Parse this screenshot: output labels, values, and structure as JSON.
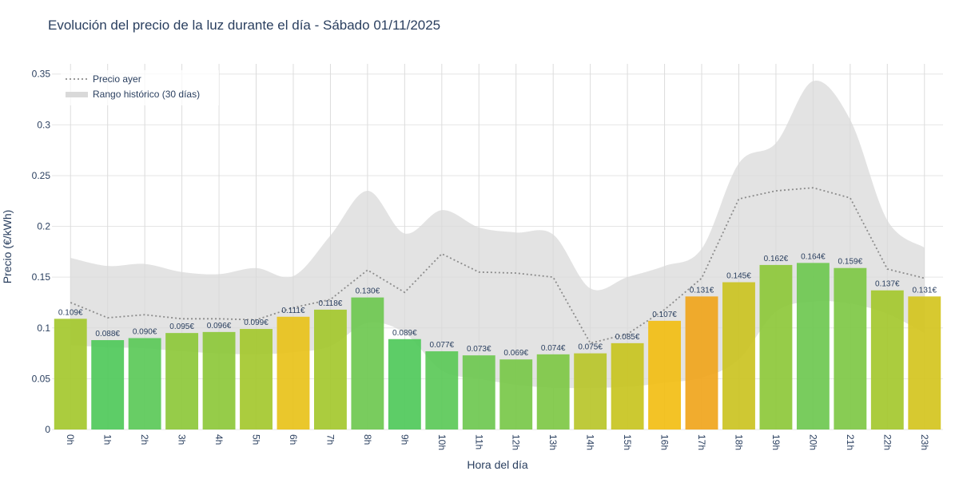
{
  "chart_data": {
    "type": "bar",
    "title": "Evolución del precio de la luz durante el día - Sábado 01/11/2025",
    "xlabel": "Hora del día",
    "ylabel": "Precio (€/kWh)",
    "ylim": [
      0,
      0.36
    ],
    "yticks": [
      0,
      0.05,
      0.1,
      0.15,
      0.2,
      0.25,
      0.3,
      0.35
    ],
    "ytick_labels": [
      "0",
      "0.05",
      "0.1",
      "0.15",
      "0.2",
      "0.25",
      "0.3",
      "0.35"
    ],
    "categories": [
      "0h",
      "1h",
      "2h",
      "3h",
      "4h",
      "5h",
      "6h",
      "7h",
      "8h",
      "9h",
      "10h",
      "11h",
      "12h",
      "13h",
      "14h",
      "15h",
      "16h",
      "17h",
      "18h",
      "19h",
      "20h",
      "21h",
      "22h",
      "23h"
    ],
    "values": [
      0.109,
      0.088,
      0.09,
      0.095,
      0.096,
      0.099,
      0.111,
      0.118,
      0.13,
      0.089,
      0.077,
      0.073,
      0.069,
      0.074,
      0.075,
      0.085,
      0.107,
      0.131,
      0.145,
      0.162,
      0.164,
      0.159,
      0.137,
      0.131
    ],
    "value_labels": [
      "0.109€",
      "0.088€",
      "0.090€",
      "0.095€",
      "0.096€",
      "0.099€",
      "0.111€",
      "0.118€",
      "0.130€",
      "0.089€",
      "0.077€",
      "0.073€",
      "0.069€",
      "0.074€",
      "0.075€",
      "0.085€",
      "0.107€",
      "0.131€",
      "0.145€",
      "0.162€",
      "0.164€",
      "0.159€",
      "0.137€",
      "0.131€"
    ],
    "bar_colors": [
      "#a4c82e",
      "#4fc95a",
      "#5bc958",
      "#8dc83a",
      "#8dc83a",
      "#a4c82e",
      "#e8c21a",
      "#a4c82e",
      "#6ec850",
      "#4fc95a",
      "#5bc958",
      "#6ec850",
      "#78c849",
      "#7ec845",
      "#b9c62a",
      "#c8c420",
      "#f2be14",
      "#f0a51c",
      "#cbc322",
      "#8dc83a",
      "#6ec850",
      "#7ec845",
      "#a4c82e",
      "#d4c41e"
    ],
    "series": [
      {
        "name": "Precio ayer",
        "values": [
          0.125,
          0.11,
          0.113,
          0.109,
          0.109,
          0.108,
          0.12,
          0.128,
          0.157,
          0.135,
          0.173,
          0.155,
          0.154,
          0.15,
          0.085,
          0.094,
          0.118,
          0.149,
          0.227,
          0.235,
          0.238,
          0.228,
          0.158,
          0.149
        ]
      },
      {
        "name": "Rango histórico (30 días)",
        "upper": [
          0.169,
          0.161,
          0.163,
          0.155,
          0.153,
          0.159,
          0.151,
          0.191,
          0.235,
          0.193,
          0.216,
          0.199,
          0.194,
          0.192,
          0.139,
          0.15,
          0.161,
          0.178,
          0.262,
          0.282,
          0.343,
          0.305,
          0.206,
          0.179
        ],
        "lower": [
          0.083,
          0.081,
          0.08,
          0.077,
          0.075,
          0.074,
          0.076,
          0.082,
          0.105,
          0.095,
          0.058,
          0.05,
          0.044,
          0.041,
          0.041,
          0.042,
          0.046,
          0.051,
          0.069,
          0.116,
          0.126,
          0.124,
          0.114,
          0.095
        ]
      }
    ],
    "colors": {
      "yesterday_line": "#8c8c8c",
      "range_fill": "#d9d9d9",
      "grid": "#e6e6e6",
      "text": "#2a3f5f"
    },
    "legend": {
      "position": "top-left",
      "items": [
        "Precio ayer",
        "Rango histórico (30 días)"
      ]
    },
    "grid": true
  }
}
